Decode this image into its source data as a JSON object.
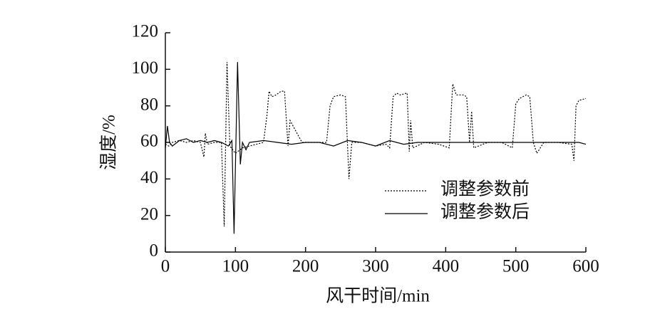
{
  "chart_data": {
    "type": "line",
    "xlabel": "风干时间/min",
    "ylabel": "湿度/%",
    "xlim": [
      0,
      600
    ],
    "ylim": [
      0,
      120
    ],
    "xticks": [
      0,
      100,
      200,
      300,
      400,
      500,
      600
    ],
    "yticks": [
      0,
      20,
      40,
      60,
      80,
      100,
      120
    ],
    "legend": "right",
    "series": [
      {
        "name": "调整参数前",
        "color": "#000000",
        "line_style": "dotted",
        "x": [
          0,
          5,
          10,
          20,
          30,
          40,
          50,
          55,
          57,
          60,
          70,
          80,
          84,
          88,
          92,
          100,
          110,
          120,
          130,
          140,
          145,
          148,
          152,
          158,
          165,
          170,
          175,
          178,
          185,
          195,
          210,
          230,
          235,
          240,
          250,
          257,
          262,
          266,
          280,
          300,
          315,
          320,
          325,
          330,
          335,
          345,
          348,
          350,
          353,
          370,
          390,
          405,
          410,
          415,
          425,
          430,
          434,
          437,
          440,
          460,
          480,
          495,
          500,
          505,
          515,
          520,
          525,
          530,
          540,
          560,
          580,
          583,
          586,
          590,
          600
        ],
        "values": [
          59,
          58,
          60,
          61,
          60,
          61,
          60,
          52,
          65,
          59,
          60,
          60,
          14,
          104,
          58,
          54,
          57,
          58,
          59,
          60,
          75,
          88,
          85,
          86,
          88,
          88,
          58,
          72,
          67,
          60,
          60,
          60,
          80,
          85,
          86,
          85,
          40,
          60,
          60,
          58,
          59,
          57,
          85,
          87,
          86,
          87,
          55,
          72,
          57,
          60,
          59,
          57,
          92,
          86,
          86,
          85,
          60,
          77,
          57,
          60,
          60,
          57,
          81,
          84,
          86,
          85,
          60,
          54,
          60,
          60,
          59,
          50,
          80,
          83,
          84
        ]
      },
      {
        "name": "调整参数后",
        "color": "#000000",
        "line_style": "solid",
        "x": [
          0,
          3,
          6,
          10,
          20,
          30,
          40,
          50,
          60,
          70,
          80,
          90,
          95,
          98,
          103,
          107,
          110,
          115,
          120,
          140,
          160,
          180,
          200,
          220,
          240,
          260,
          280,
          300,
          320,
          340,
          360,
          380,
          400,
          420,
          460,
          500,
          540,
          580,
          590,
          600
        ],
        "values": [
          57,
          69,
          60,
          58,
          61,
          62,
          60,
          61,
          60,
          61,
          60,
          58,
          61,
          10,
          104,
          48,
          60,
          56,
          60,
          61,
          60,
          59,
          60,
          60,
          58,
          61,
          60,
          58,
          61,
          59,
          60,
          60,
          60,
          60,
          60,
          60,
          60,
          60,
          60,
          59
        ]
      }
    ]
  }
}
